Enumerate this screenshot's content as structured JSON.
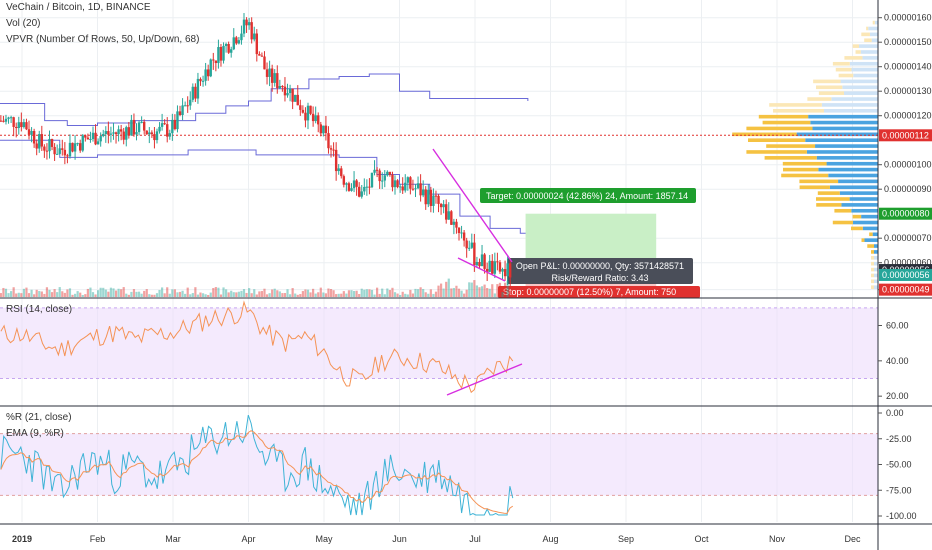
{
  "colors": {
    "up": "#26a69a",
    "down": "#e0312f",
    "grid": "#eceff2",
    "panel_border": "#2a2e39",
    "vpvr_line": "#6a6ad8",
    "poc": "#e0312f",
    "rsi_band": "#ecdcfb",
    "rsi_line": "#f59356",
    "wr_line": "#3eb3d6",
    "ema_line": "#f59356",
    "trendline": "#d72ee0",
    "target_fill": "#c9efc6",
    "stop_fill": "#f8c6c6",
    "vp_up": "#4aa3e0",
    "vp_down": "#f5c242",
    "vp_up_light": "#cfe3f6",
    "vp_down_light": "#fbe7b6"
  },
  "legend": {
    "main_title": "VeChain / Bitcoin, 1D, BINANCE",
    "volume": "Vol (20)",
    "vpvr": "VPVR (Number Of Rows, 50, Up/Down, 68)",
    "rsi": "RSI (14, close)",
    "wr": "%R (21, close)",
    "ema": "EMA (9, %R)"
  },
  "price_axis": {
    "labels": [
      "0.00000160",
      "0.00000150",
      "0.00000140",
      "0.00000130",
      "0.00000120",
      "0.00000100",
      "0.00000090",
      "0.00000070",
      "0.00000060",
      "0.00000049"
    ],
    "values": [
      160,
      150,
      140,
      130,
      120,
      100,
      90,
      70,
      60,
      49
    ],
    "badges": [
      {
        "text": "0.00000112",
        "value": 112,
        "color": "#e0312f"
      },
      {
        "text": "0.00000080",
        "value": 80,
        "color": "#1e9e2e"
      },
      {
        "text": "0.00000056",
        "value": 57,
        "color": "#2a2e39"
      },
      {
        "text": "0.00000056",
        "value": 55,
        "color": "#26a69a"
      },
      {
        "text": "0.00000049",
        "value": 49,
        "color": "#e0312f"
      }
    ]
  },
  "rsi_axis": {
    "labels": [
      "60.00",
      "40.00",
      "20.00"
    ],
    "values": [
      60,
      40,
      20
    ]
  },
  "wr_axis": {
    "labels": [
      "0.00",
      "-25.00",
      "-50.00",
      "-75.00",
      "-100.00"
    ],
    "values": [
      0,
      -25,
      -50,
      -75,
      -100
    ]
  },
  "time_axis": {
    "labels": [
      "2019",
      "Feb",
      "Mar",
      "Apr",
      "May",
      "Jun",
      "Jul",
      "Aug",
      "Sep",
      "Oct",
      "Nov",
      "Dec"
    ],
    "months": [
      0,
      1,
      2,
      3,
      4,
      5,
      6,
      7,
      8,
      9,
      10,
      11
    ]
  },
  "position_tool": {
    "target_label": "Target: 0.00000024 (42.86%) 24, Amount: 1857.14",
    "pnl_label": "Open P&L: 0.00000000, Qty: 3571428571",
    "rr_label": "Risk/Reward Ratio: 3.43",
    "stop_label": "Stop: 0.00000007 (12.50%) 7, Amount: 750",
    "entry": 56,
    "target": 80,
    "stop": 49
  },
  "chart_data": [
    {
      "type": "candlestick",
      "title": "VeChain / Bitcoin, 1D, BINANCE",
      "x_unit": "month index (Jan 2019 = 0)",
      "y_unit": "satoshi (x 1e-8 BTC)",
      "ylim": [
        46,
        166
      ],
      "poc": 112,
      "series": [
        {
          "name": "close",
          "x": [
            0,
            0.25,
            0.5,
            0.75,
            1,
            1.25,
            1.5,
            1.75,
            2,
            2.25,
            2.5,
            2.75,
            3,
            3.25,
            3.5,
            3.75,
            4,
            4.25,
            4.5,
            4.75,
            5,
            5.25,
            5.5,
            5.75,
            6,
            6.25,
            6.5
          ],
          "values": [
            118,
            108,
            106,
            109,
            112,
            113,
            115,
            113,
            115,
            128,
            142,
            150,
            158,
            136,
            132,
            122,
            112,
            95,
            88,
            97,
            92,
            90,
            84,
            76,
            62,
            57,
            56
          ]
        }
      ]
    },
    {
      "type": "line",
      "title": "RSI (14, close)",
      "ylim": [
        15,
        75
      ],
      "x": [
        0,
        0.25,
        0.5,
        0.75,
        1,
        1.25,
        1.5,
        1.75,
        2,
        2.25,
        2.5,
        2.75,
        3,
        3.25,
        3.5,
        3.75,
        4,
        4.25,
        4.5,
        4.75,
        5,
        5.25,
        5.5,
        5.75,
        6,
        6.25,
        6.5
      ],
      "values": [
        55,
        50,
        46,
        51,
        54,
        56,
        52,
        55,
        56,
        60,
        64,
        66,
        68,
        55,
        50,
        54,
        45,
        32,
        28,
        40,
        42,
        40,
        37,
        30,
        25,
        36,
        40
      ]
    },
    {
      "type": "line",
      "title": "%R (21, close)",
      "ylim": [
        -100,
        0
      ],
      "x": [
        0,
        0.25,
        0.5,
        0.75,
        1,
        1.25,
        1.5,
        1.75,
        2,
        2.25,
        2.5,
        2.75,
        3,
        3.25,
        3.5,
        3.75,
        4,
        4.25,
        4.5,
        4.75,
        5,
        5.25,
        5.5,
        5.75,
        6,
        6.25,
        6.5
      ],
      "values": [
        -40,
        -55,
        -80,
        -55,
        -45,
        -60,
        -50,
        -65,
        -55,
        -40,
        -25,
        -20,
        -15,
        -45,
        -60,
        -50,
        -70,
        -85,
        -95,
        -60,
        -55,
        -65,
        -55,
        -75,
        -95,
        -90,
        -85
      ]
    }
  ]
}
